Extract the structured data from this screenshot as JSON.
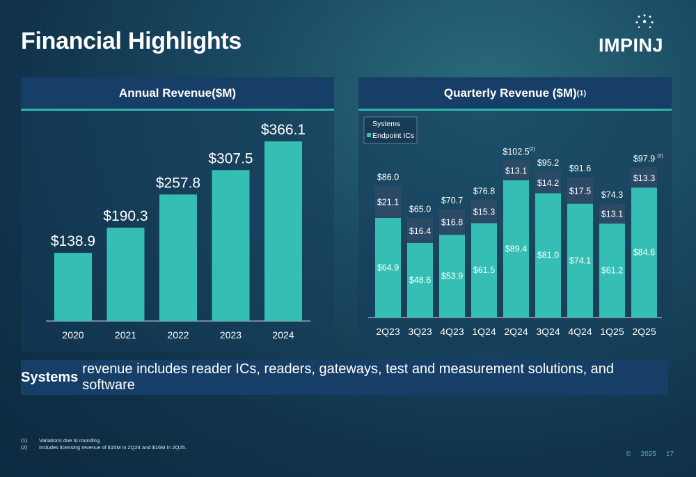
{
  "page": {
    "title": "Financial Highlights",
    "logo_text": "IMPINJ"
  },
  "annual": {
    "header": "Annual Revenue($M)"
  },
  "quarterly": {
    "header": "Quarterly Revenue ($M)",
    "header_sup": "(1)"
  },
  "banner": {
    "bold": "Systems",
    "text": "revenue includes reader ICs, readers, gateways, test and measurement solutions, and software"
  },
  "footnotes": [
    {
      "num": "(1)",
      "text": "Variations due to rounding."
    },
    {
      "num": "(2)",
      "text": "Includes licensing revenue of $15M in 2Q24 and $16M in 2Q25."
    }
  ],
  "footer": {
    "copyright": "©",
    "year": "2025",
    "page": "17"
  },
  "colors": {
    "teal": "#35bfb4",
    "systems": "#2c4a66",
    "header": "#173e66",
    "accent": "#2fb5ad"
  },
  "chart_data": [
    {
      "type": "bar",
      "title": "Annual Revenue($M)",
      "categories": [
        "2020",
        "2021",
        "2022",
        "2023",
        "2024"
      ],
      "values": [
        138.9,
        190.3,
        257.8,
        307.5,
        366.1
      ],
      "labels": [
        "$138.9",
        "$190.3",
        "$257.8",
        "$307.5",
        "$366.1"
      ],
      "ylim": [
        0,
        400
      ]
    },
    {
      "type": "bar",
      "stacked": true,
      "title": "Quarterly Revenue ($M)",
      "categories": [
        "2Q23",
        "3Q23",
        "4Q23",
        "1Q24",
        "2Q24",
        "3Q24",
        "4Q24",
        "1Q25",
        "2Q25"
      ],
      "series": [
        {
          "name": "Endpoint ICs",
          "values": [
            64.9,
            48.6,
            53.9,
            61.5,
            89.4,
            81.0,
            74.1,
            61.2,
            84.6
          ]
        },
        {
          "name": "Systems",
          "values": [
            21.1,
            16.4,
            16.8,
            15.3,
            13.1,
            14.2,
            17.5,
            13.1,
            13.3
          ]
        }
      ],
      "totals": [
        86.0,
        65.0,
        70.7,
        76.8,
        102.5,
        95.2,
        91.6,
        74.3,
        97.9
      ],
      "total_labels": [
        "$86.0",
        "$65.0",
        "$70.7",
        "$76.8",
        "$102.5",
        "$95.2",
        "$91.6",
        "$74.3",
        "$97.9"
      ],
      "total_notes": [
        "",
        "",
        "",
        "",
        "(2)",
        "",
        "",
        "",
        "(2)"
      ],
      "ylim": [
        0,
        120
      ],
      "legend_position": "top-left"
    }
  ]
}
